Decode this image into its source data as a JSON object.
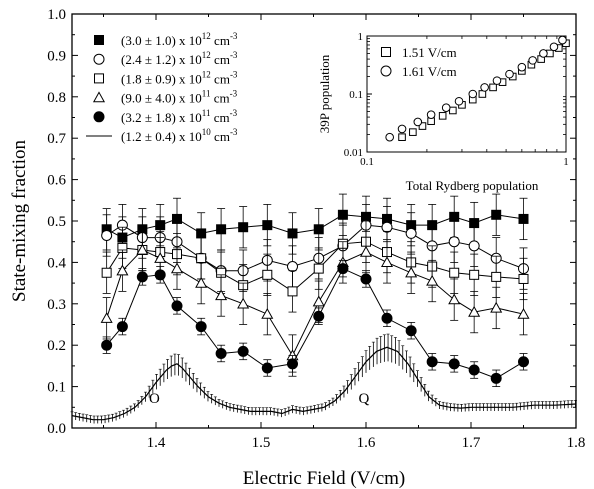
{
  "chart_data": [
    {
      "type": "scatter",
      "xlabel": "Electric Field (V/cm)",
      "ylabel": "State-mixing fraction",
      "xlim": [
        1.32,
        1.8
      ],
      "ylim": [
        0.0,
        1.0
      ],
      "x_ticks": [
        "1.4",
        "1.5",
        "1.6",
        "1.7",
        "1.8"
      ],
      "y_ticks": [
        "0.0",
        "0.1",
        "0.2",
        "0.3",
        "0.4",
        "0.5",
        "0.6",
        "0.7",
        "0.8",
        "0.9",
        "1.0"
      ],
      "legend_placement": "top-left",
      "x": [
        1.35,
        1.37,
        1.39,
        1.41,
        1.43,
        1.45,
        1.47,
        1.49,
        1.51,
        1.53,
        1.55,
        1.57,
        1.59,
        1.61,
        1.63,
        1.65,
        1.67,
        1.69,
        1.71,
        1.73,
        1.75
      ],
      "series": [
        {
          "name": "(3.0 ± 1.0) x 10",
          "exp": "12",
          "unit": "cm",
          "unit_exp": "-3",
          "marker": "square-filled",
          "x": [
            1.353,
            1.368,
            1.387,
            1.404,
            1.42,
            1.443,
            1.462,
            1.483,
            1.506,
            1.53,
            1.555,
            1.578,
            1.6,
            1.62,
            1.643,
            1.663,
            1.684,
            1.703,
            1.724,
            1.75
          ],
          "values": [
            0.48,
            0.46,
            0.48,
            0.49,
            0.505,
            0.47,
            0.48,
            0.485,
            0.49,
            0.47,
            0.48,
            0.515,
            0.51,
            0.505,
            0.49,
            0.49,
            0.51,
            0.495,
            0.515,
            0.505
          ],
          "err": 0.05
        },
        {
          "name": "(2.4 ± 1.2) x 10",
          "exp": "12",
          "unit": "cm",
          "unit_exp": "-3",
          "marker": "circle-open",
          "x": [
            1.353,
            1.368,
            1.387,
            1.404,
            1.42,
            1.443,
            1.462,
            1.483,
            1.506,
            1.53,
            1.555,
            1.578,
            1.6,
            1.62,
            1.643,
            1.663,
            1.684,
            1.703,
            1.724,
            1.75
          ],
          "values": [
            0.465,
            0.49,
            0.46,
            0.46,
            0.45,
            0.41,
            0.38,
            0.38,
            0.405,
            0.39,
            0.41,
            0.44,
            0.49,
            0.485,
            0.47,
            0.44,
            0.45,
            0.44,
            0.41,
            0.385
          ],
          "err": 0.05
        },
        {
          "name": "(1.8 ± 0.9) x 10",
          "exp": "12",
          "unit": "cm",
          "unit_exp": "-3",
          "marker": "square-open",
          "x": [
            1.353,
            1.368,
            1.387,
            1.404,
            1.42,
            1.443,
            1.462,
            1.483,
            1.506,
            1.53,
            1.555,
            1.578,
            1.6,
            1.62,
            1.643,
            1.663,
            1.684,
            1.703,
            1.724,
            1.75
          ],
          "values": [
            0.375,
            0.435,
            0.43,
            0.425,
            0.42,
            0.41,
            0.375,
            0.345,
            0.37,
            0.33,
            0.385,
            0.445,
            0.45,
            0.425,
            0.4,
            0.39,
            0.375,
            0.37,
            0.365,
            0.36
          ],
          "err": 0.05
        },
        {
          "name": "(9.0 ± 4.0) x 10",
          "exp": "11",
          "unit": "cm",
          "unit_exp": "-3",
          "marker": "triangle-open",
          "x": [
            1.353,
            1.368,
            1.387,
            1.404,
            1.42,
            1.443,
            1.462,
            1.483,
            1.506,
            1.53,
            1.555,
            1.578,
            1.6,
            1.62,
            1.643,
            1.663,
            1.684,
            1.703,
            1.724,
            1.75
          ],
          "values": [
            0.265,
            0.38,
            0.43,
            0.41,
            0.385,
            0.35,
            0.32,
            0.3,
            0.275,
            0.175,
            0.305,
            0.4,
            0.425,
            0.4,
            0.375,
            0.355,
            0.31,
            0.28,
            0.29,
            0.275
          ],
          "err": 0.05
        },
        {
          "name": "(3.2 ± 1.8) x 10",
          "exp": "11",
          "unit": "cm",
          "unit_exp": "-3",
          "marker": "circle-filled",
          "x": [
            1.353,
            1.368,
            1.387,
            1.404,
            1.42,
            1.443,
            1.462,
            1.483,
            1.506,
            1.53,
            1.555,
            1.578,
            1.6,
            1.62,
            1.643,
            1.663,
            1.684,
            1.703,
            1.724,
            1.75
          ],
          "values": [
            0.2,
            0.245,
            0.365,
            0.37,
            0.295,
            0.245,
            0.18,
            0.185,
            0.145,
            0.155,
            0.27,
            0.385,
            0.36,
            0.265,
            0.235,
            0.16,
            0.155,
            0.14,
            0.12,
            0.16
          ],
          "err": 0.02
        },
        {
          "name": "(1.2 ± 0.4) x 10",
          "exp": "10",
          "unit": "cm",
          "unit_exp": "-3",
          "marker": "line",
          "x": [
            1.32,
            1.33,
            1.34,
            1.35,
            1.36,
            1.37,
            1.38,
            1.39,
            1.4,
            1.41,
            1.415,
            1.42,
            1.425,
            1.43,
            1.44,
            1.45,
            1.46,
            1.47,
            1.48,
            1.49,
            1.5,
            1.51,
            1.52,
            1.53,
            1.54,
            1.55,
            1.56,
            1.57,
            1.58,
            1.59,
            1.6,
            1.61,
            1.615,
            1.62,
            1.625,
            1.63,
            1.64,
            1.65,
            1.66,
            1.67,
            1.68,
            1.69,
            1.7,
            1.72,
            1.74,
            1.76,
            1.78,
            1.8
          ],
          "values": [
            0.03,
            0.025,
            0.02,
            0.02,
            0.025,
            0.035,
            0.05,
            0.075,
            0.11,
            0.14,
            0.15,
            0.155,
            0.145,
            0.13,
            0.1,
            0.075,
            0.06,
            0.05,
            0.045,
            0.04,
            0.04,
            0.04,
            0.035,
            0.045,
            0.04,
            0.045,
            0.05,
            0.065,
            0.09,
            0.125,
            0.16,
            0.185,
            0.19,
            0.195,
            0.19,
            0.185,
            0.155,
            0.115,
            0.075,
            0.055,
            0.05,
            0.048,
            0.05,
            0.05,
            0.05,
            0.055,
            0.055,
            0.058
          ],
          "err": 0.01
        }
      ],
      "annotations": [
        "O",
        "Q"
      ],
      "annotation_x": [
        1.42,
        1.61
      ]
    },
    {
      "type": "scatter",
      "xlabel": "Total Rydberg population",
      "ylabel": "39P population",
      "xscale": "log",
      "yscale": "log",
      "xlim": [
        0.1,
        1
      ],
      "ylim": [
        0.01,
        1
      ],
      "x_ticks": [
        "0.1",
        "1"
      ],
      "y_ticks": [
        "0.01",
        "0.1",
        "1"
      ],
      "legend_placement": "top-left",
      "series": [
        {
          "name": "1.51 V/cm",
          "marker": "square-open",
          "x": [
            0.15,
            0.17,
            0.19,
            0.21,
            0.24,
            0.27,
            0.3,
            0.34,
            0.38,
            0.43,
            0.48,
            0.54,
            0.6,
            0.67,
            0.75,
            0.83,
            0.92,
            1.0
          ],
          "values": [
            0.018,
            0.022,
            0.028,
            0.034,
            0.042,
            0.052,
            0.065,
            0.08,
            0.1,
            0.13,
            0.16,
            0.2,
            0.25,
            0.32,
            0.4,
            0.5,
            0.62,
            0.75
          ]
        },
        {
          "name": "1.61 V/cm",
          "marker": "circle-open",
          "x": [
            0.13,
            0.15,
            0.18,
            0.21,
            0.25,
            0.29,
            0.34,
            0.39,
            0.45,
            0.52,
            0.6,
            0.68,
            0.77,
            0.87,
            0.96
          ],
          "values": [
            0.018,
            0.025,
            0.033,
            0.044,
            0.058,
            0.075,
            0.1,
            0.13,
            0.17,
            0.22,
            0.29,
            0.38,
            0.5,
            0.65,
            0.85
          ]
        }
      ]
    }
  ]
}
